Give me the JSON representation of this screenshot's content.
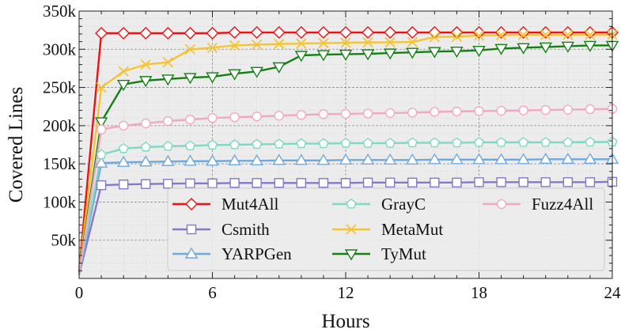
{
  "chart_data": {
    "type": "line",
    "xlabel": "Hours",
    "ylabel": "Covered Lines",
    "xlim": [
      0,
      24
    ],
    "ylim": [
      0,
      350000
    ],
    "x_ticks": [
      0,
      6,
      12,
      18,
      24
    ],
    "x_tick_labels": [
      "0",
      "6",
      "12",
      "18",
      "24"
    ],
    "y_ticks": [
      50000,
      100000,
      150000,
      200000,
      250000,
      300000,
      350000
    ],
    "y_tick_labels": [
      "50k",
      "100k",
      "150k",
      "200k",
      "250k",
      "300k",
      "350k"
    ],
    "grid": true,
    "legend_position": "bottom-right",
    "x": [
      0,
      1,
      2,
      3,
      4,
      5,
      6,
      7,
      8,
      9,
      10,
      11,
      12,
      13,
      14,
      15,
      16,
      17,
      18,
      19,
      20,
      21,
      22,
      23,
      24
    ],
    "series": [
      {
        "name": "Mut4All",
        "color": "#ee1111",
        "marker": "diamond",
        "values": [
          10000,
          321000,
          321000,
          321000,
          321000,
          321000,
          321000,
          322000,
          322000,
          322000,
          322000,
          322000,
          322000,
          322000,
          322000,
          322000,
          322000,
          322000,
          322000,
          322000,
          322000,
          322000,
          322000,
          322000,
          322000
        ]
      },
      {
        "name": "Csmith",
        "color": "#8877c6",
        "marker": "square",
        "values": [
          5000,
          122000,
          123000,
          123500,
          124000,
          124500,
          124500,
          125000,
          125000,
          125000,
          125000,
          125000,
          125000,
          125500,
          125500,
          125500,
          125500,
          125500,
          126000,
          126000,
          126000,
          126000,
          126000,
          126000,
          126500
        ]
      },
      {
        "name": "YARPGen",
        "color": "#6fa8dc",
        "marker": "triangle-up",
        "values": [
          5000,
          151000,
          152000,
          152500,
          153000,
          153500,
          153500,
          154000,
          154000,
          154500,
          154500,
          154500,
          155000,
          155000,
          155000,
          155000,
          155500,
          155500,
          155500,
          155500,
          155500,
          156000,
          156000,
          156000,
          156000
        ]
      },
      {
        "name": "GrayC",
        "color": "#7fd8c4",
        "marker": "pentagon",
        "values": [
          8000,
          162000,
          170000,
          172000,
          173000,
          173500,
          174500,
          175000,
          175500,
          176000,
          176500,
          176500,
          177000,
          177000,
          177000,
          177500,
          177500,
          177500,
          178000,
          178000,
          178000,
          178000,
          178000,
          178500,
          178500
        ]
      },
      {
        "name": "MetaMut",
        "color": "#f5c431",
        "marker": "x",
        "values": [
          10000,
          250000,
          271000,
          280000,
          283000,
          300000,
          302000,
          305000,
          306000,
          307000,
          307500,
          308000,
          308500,
          309000,
          309000,
          309500,
          316000,
          316500,
          318000,
          318500,
          319000,
          319000,
          319000,
          319000,
          319000
        ]
      },
      {
        "name": "TyMut",
        "color": "#148014",
        "marker": "triangle-down",
        "values": [
          8000,
          205000,
          254000,
          259000,
          261000,
          263000,
          264000,
          268000,
          271000,
          277000,
          292000,
          293000,
          293500,
          294000,
          295000,
          296000,
          297000,
          297500,
          298500,
          301000,
          302000,
          303000,
          304000,
          305000,
          305000
        ]
      },
      {
        "name": "Fuzz4All",
        "color": "#f4a7c0",
        "marker": "circle",
        "values": [
          6000,
          195000,
          200000,
          203000,
          206000,
          208000,
          210000,
          211000,
          212000,
          213000,
          214000,
          215000,
          215500,
          216000,
          216500,
          217000,
          218000,
          218500,
          219000,
          219500,
          220000,
          220500,
          221000,
          221500,
          222000
        ]
      }
    ]
  }
}
